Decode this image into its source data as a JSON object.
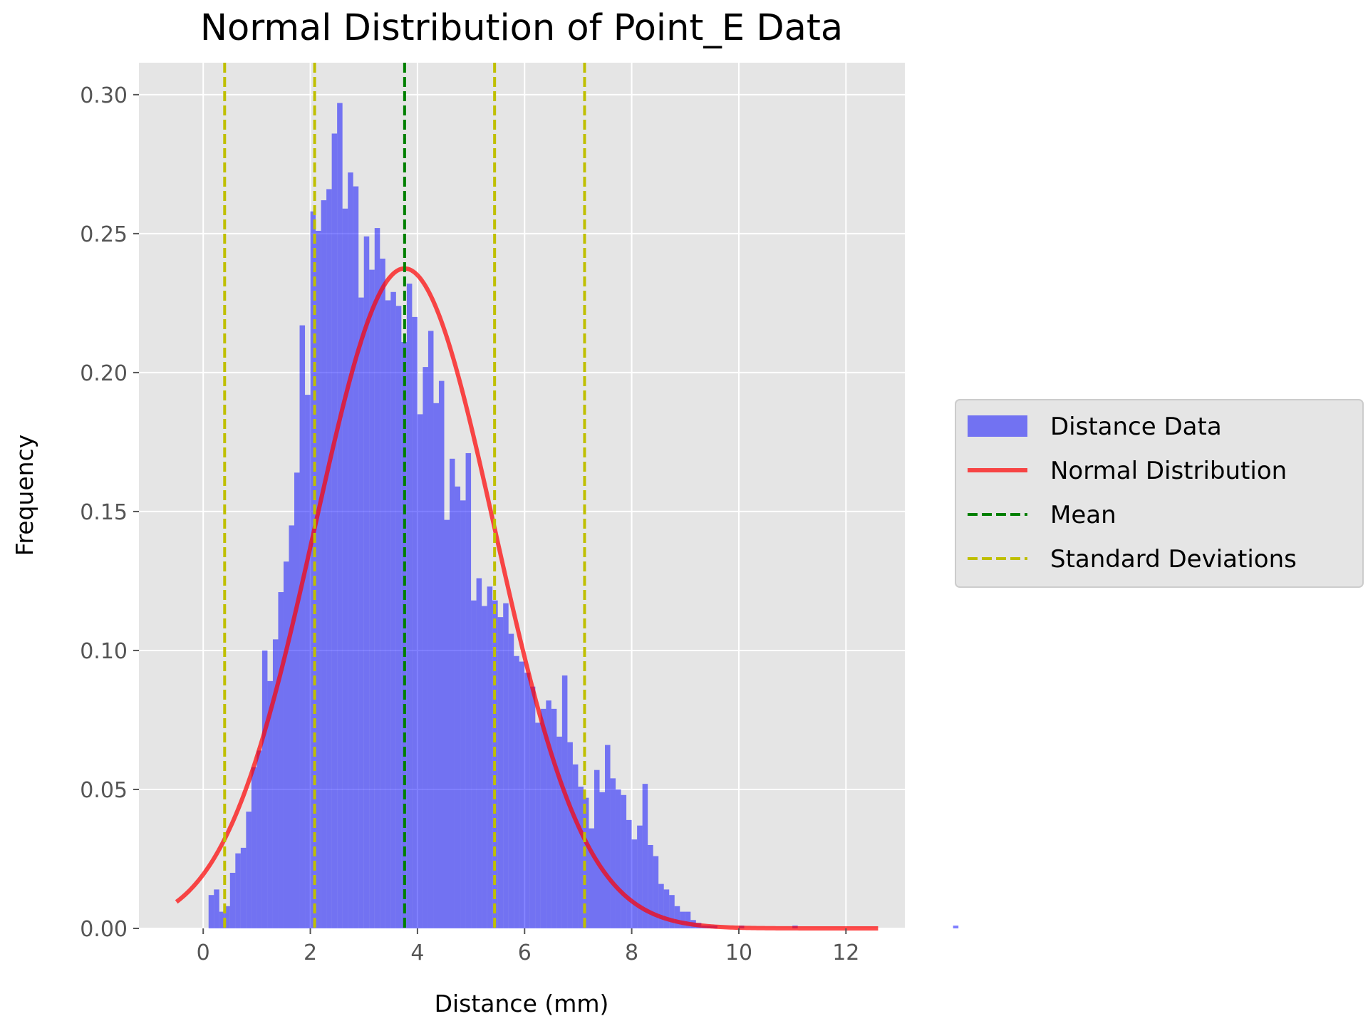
{
  "chart_data": {
    "type": "bar",
    "title": "Normal Distribution of Point_E Data",
    "xlabel": "Distance (mm)",
    "ylabel": "Frequency",
    "xlim": [
      -1.2,
      13.1
    ],
    "ylim": [
      0,
      0.3115
    ],
    "x_ticks": [
      0,
      2,
      4,
      6,
      8,
      10,
      12
    ],
    "x_tick_labels": [
      "0",
      "2",
      "4",
      "6",
      "8",
      "10",
      "12"
    ],
    "y_ticks": [
      0,
      0.05,
      0.1,
      0.15,
      0.2,
      0.25,
      0.3
    ],
    "y_tick_labels": [
      "0.00",
      "0.05",
      "0.10",
      "0.15",
      "0.20",
      "0.25",
      "0.30"
    ],
    "grid": true,
    "legend_position": "outside-right",
    "colors": {
      "plot_background": "#e5e5e5",
      "grid": "#ffffff",
      "histogram": "#0000ff",
      "normal_curve": "#ff0000",
      "mean_line": "#007f00",
      "std_lines": "#bfbf00"
    },
    "histogram": {
      "name": "Distance Data",
      "bin_edges_start": 0.1,
      "bin_width": 0.1,
      "values": [
        0.012,
        0.014,
        0.006,
        0.008,
        0.02,
        0.027,
        0.029,
        0.042,
        0.058,
        0.064,
        0.1,
        0.089,
        0.104,
        0.121,
        0.132,
        0.145,
        0.164,
        0.217,
        0.192,
        0.258,
        0.251,
        0.262,
        0.266,
        0.286,
        0.297,
        0.259,
        0.272,
        0.267,
        0.227,
        0.249,
        0.237,
        0.252,
        0.241,
        0.226,
        0.229,
        0.224,
        0.211,
        0.232,
        0.22,
        0.185,
        0.202,
        0.215,
        0.189,
        0.197,
        0.147,
        0.169,
        0.159,
        0.154,
        0.171,
        0.118,
        0.126,
        0.116,
        0.123,
        0.118,
        0.112,
        0.117,
        0.106,
        0.098,
        0.096,
        0.092,
        0.087,
        0.074,
        0.079,
        0.082,
        0.079,
        0.069,
        0.091,
        0.067,
        0.059,
        0.051,
        0.047,
        0.036,
        0.057,
        0.049,
        0.066,
        0.054,
        0.05,
        0.048,
        0.039,
        0.032,
        0.037,
        0.052,
        0.03,
        0.026,
        0.016,
        0.014,
        0.012,
        0.008,
        0.006,
        0.006,
        0.003,
        0.002,
        0.001,
        0.001,
        0.001,
        0.0,
        0.0,
        0.0,
        0.0,
        0.001,
        0.0,
        0.0,
        0.0,
        0.0,
        0.0,
        0.0,
        0.0,
        0.0,
        0.0,
        0.001,
        0.0,
        0.0,
        0.0,
        0.0,
        0.0,
        0.0,
        0.0,
        0.0,
        0.0,
        0.0,
        0.0,
        0.0,
        0.0,
        0.0,
        0.0,
        0.0,
        0.0,
        0.0,
        0.0,
        0.0,
        0.0,
        0.0,
        0.0,
        0.0,
        0.0,
        0.0,
        0.0,
        0.0,
        0.0,
        0.001
      ]
    },
    "normal_curve": {
      "name": "Normal Distribution",
      "mean": 3.76,
      "std": 1.68,
      "x_range": [
        -0.5,
        12.6
      ]
    },
    "mean_line": {
      "name": "Mean",
      "x": 3.76
    },
    "std_lines": {
      "name": "Standard Deviations",
      "x": [
        0.4,
        2.08,
        5.44,
        7.12
      ]
    },
    "legend": [
      "Distance Data",
      "Normal Distribution",
      "Mean",
      "Standard Deviations"
    ]
  }
}
